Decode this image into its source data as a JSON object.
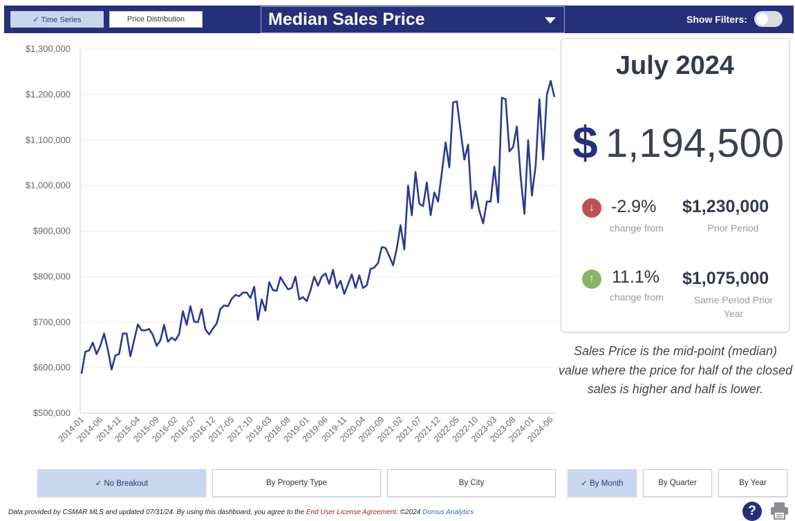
{
  "header": {
    "tabs": [
      {
        "label": "✓ Time Series",
        "active": true
      },
      {
        "label": "Price Distribution",
        "active": false
      }
    ],
    "metric_selected": "Median Sales Price",
    "filters_label": "Show Filters:",
    "filters_on": false
  },
  "card": {
    "period": "July 2024",
    "currency": "$",
    "value": "1,194,500",
    "prior": {
      "pct": "-2.9%",
      "sub": "change from",
      "value": "$1,230,000",
      "label": "Prior Period",
      "direction": "down"
    },
    "year": {
      "pct": "11.1%",
      "sub": "change from",
      "value": "$1,075,000",
      "label": "Same Period Prior Year",
      "direction": "up"
    }
  },
  "note": "Sales Price is the mid-point (median) value where the price for half of the closed sales is higher and half is lower.",
  "breakout_buttons": [
    {
      "label": "✓ No Breakout",
      "active": true
    },
    {
      "label": "By Property Type",
      "active": false
    },
    {
      "label": "By City",
      "active": false
    }
  ],
  "period_buttons": [
    {
      "label": "✓ By Month",
      "active": true
    },
    {
      "label": "By Quarter",
      "active": false
    },
    {
      "label": "By Year",
      "active": false
    }
  ],
  "footer": {
    "text1": "Data provided by CSMAR MLS and updated 07/31/24.  By using this dashboard, you agree to the ",
    "link1": "End User License Agreement",
    "text2": ".  ©2024 ",
    "link2": "Domus Analytics"
  },
  "colors": {
    "line": "#2b3990",
    "header": "#262f7a"
  },
  "chart_data": {
    "type": "line",
    "title": "",
    "ylim": [
      500000,
      1300000
    ],
    "y_ticks": [
      500000,
      600000,
      700000,
      800000,
      900000,
      1000000,
      1100000,
      1200000,
      1300000
    ],
    "y_tick_labels": [
      "$500,000",
      "$600,000",
      "$700,000",
      "$800,000",
      "$900,000",
      "$1,000,000",
      "$1,100,000",
      "$1,200,000",
      "$1,300,000"
    ],
    "x_tick_labels": [
      "2014-01",
      "2014-06",
      "2014-11",
      "2015-04",
      "2015-09",
      "2016-02",
      "2016-07",
      "2016-12",
      "2017-05",
      "2017-10",
      "2018-03",
      "2018-08",
      "2019-01",
      "2019-06",
      "2019-11",
      "2020-04",
      "2020-09",
      "2021-02",
      "2021-07",
      "2021-12",
      "2022-05",
      "2022-10",
      "2023-03",
      "2023-08",
      "2024-01",
      "2024-06"
    ],
    "start": "2014-01",
    "grid": true,
    "series": [
      {
        "values": [
          587000,
          635000,
          638000,
          655000,
          630000,
          648000,
          675000,
          640000,
          596000,
          627000,
          630000,
          675000,
          675000,
          625000,
          660000,
          695000,
          682000,
          682000,
          685000,
          672000,
          648000,
          660000,
          694000,
          657000,
          666000,
          660000,
          674000,
          724000,
          694000,
          735000,
          701000,
          700000,
          729000,
          684000,
          673000,
          686000,
          697000,
          729000,
          737000,
          735000,
          751000,
          760000,
          757000,
          765000,
          765000,
          753000,
          778000,
          705000,
          750000,
          725000,
          788000,
          770000,
          769000,
          799000,
          785000,
          772000,
          775000,
          800000,
          750000,
          755000,
          746000,
          770000,
          800000,
          780000,
          800000,
          807000,
          784000,
          815000,
          775000,
          791000,
          762000,
          783000,
          805000,
          775000,
          803000,
          775000,
          781000,
          817000,
          820000,
          830000,
          865000,
          863000,
          845000,
          825000,
          862000,
          913000,
          860000,
          1000000,
          935000,
          1030000,
          960000,
          955000,
          1007000,
          935000,
          985000,
          965000,
          1028000,
          1095000,
          1040000,
          1183000,
          1185000,
          1120000,
          1057000,
          1090000,
          950000,
          988000,
          945000,
          917000,
          965000,
          965000,
          1042000,
          963000,
          1193000,
          1190000,
          1075000,
          1085000,
          1130000,
          1020000,
          938000,
          1100000,
          978000,
          1045000,
          1190000,
          1057000,
          1200000,
          1230000,
          1194500
        ]
      }
    ]
  }
}
